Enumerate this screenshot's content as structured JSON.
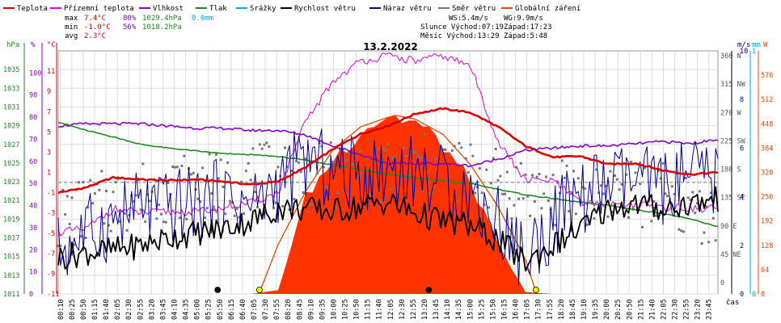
{
  "legend": [
    {
      "label": "Teplota",
      "color": "#dd0000"
    },
    {
      "label": "Přízemní teplota",
      "color": "#dd00dd"
    },
    {
      "label": "Vlhkost",
      "color": "#8800cc"
    },
    {
      "label": "Tlak",
      "color": "#228822"
    },
    {
      "label": "Srážky",
      "color": "#00aacc"
    },
    {
      "label": "Rychlost větru",
      "color": "#000000"
    },
    {
      "label": "Náraz větru",
      "color": "#000099"
    },
    {
      "label": "Směr větru",
      "color": "#777777"
    },
    {
      "label": "Globální záření",
      "color": "#ee4400"
    }
  ],
  "stats": {
    "max_label": "max",
    "min_label": "min",
    "avg_label": "avg",
    "max_temp": "7.4°C",
    "max_hum": "80%",
    "max_press": "1029.4hPa",
    "max_rain": "0.0mm",
    "min_temp": "-1.0°C",
    "min_hum": "56%",
    "min_press": "1018.2hPa",
    "avg_temp": "2.3°C"
  },
  "info": {
    "ws": "WS:5.4m/s",
    "wg": "WG:9.9m/s",
    "sun_rise": "Slunce Východ:07:19",
    "sun_set": "Západ:17:23",
    "moon_rise": "Měsíc Východ:13:29",
    "moon_set": "Západ:5:48"
  },
  "chart_data": {
    "type": "line",
    "title": "13.2.2022",
    "xlabel": "čas",
    "x_ticks": [
      "00:10",
      "00:25",
      "00:50",
      "01:15",
      "01:40",
      "02:05",
      "02:30",
      "02:55",
      "03:20",
      "03:45",
      "04:10",
      "04:35",
      "05:00",
      "05:25",
      "05:50",
      "06:15",
      "06:40",
      "07:05",
      "07:30",
      "07:55",
      "08:20",
      "08:45",
      "09:10",
      "09:35",
      "10:00",
      "10:25",
      "10:50",
      "11:15",
      "11:40",
      "12:05",
      "12:30",
      "12:55",
      "13:20",
      "13:45",
      "14:10",
      "14:35",
      "15:00",
      "15:25",
      "15:50",
      "16:15",
      "16:40",
      "17:05",
      "17:30",
      "17:55",
      "18:20",
      "18:45",
      "19:10",
      "19:35",
      "20:00",
      "20:25",
      "20:50",
      "21:15",
      "21:40",
      "22:05",
      "22:30",
      "22:55",
      "23:20",
      "23:45"
    ],
    "axes": {
      "pressure": {
        "unit": "hPa",
        "range": [
          1011,
          1037
        ],
        "ticks": [
          "1035",
          "1033",
          "1031",
          "1029",
          "1027",
          "1025",
          "1023",
          "1021",
          "1019",
          "1017",
          "1015",
          "1013",
          "1011"
        ]
      },
      "humidity": {
        "unit": "%",
        "range": [
          0,
          110
        ],
        "ticks": [
          "100",
          "90",
          "80",
          "70",
          "60",
          "50",
          "40",
          "30",
          "20",
          "10",
          "0"
        ]
      },
      "temperature": {
        "unit": "°C",
        "range": [
          -11,
          13
        ],
        "ticks": [
          "11",
          "9",
          "7",
          "5",
          "3",
          "1",
          "-1",
          "-3",
          "-5",
          "-7",
          "-9",
          "-11"
        ]
      },
      "direction": {
        "ticks": [
          "360 N",
          "315 NW",
          "270 W",
          "225 SW",
          "180 S",
          "135 SE",
          "90 E",
          "45 NE",
          "0"
        ]
      },
      "wind": {
        "unit": "m/s",
        "range": [
          0,
          10
        ],
        "ticks": [
          "10",
          "8",
          "6",
          "4",
          "2",
          "0"
        ]
      },
      "rain": {
        "unit": "mm",
        "range": [
          0,
          1
        ],
        "ticks": [
          "1",
          "0"
        ]
      },
      "radiation": {
        "unit": "W",
        "range": [
          0,
          640
        ],
        "ticks": [
          "576",
          "512",
          "448",
          "384",
          "320",
          "256",
          "192",
          "128",
          "64",
          "0"
        ]
      }
    },
    "hours": [
      0,
      1,
      2,
      3,
      4,
      5,
      6,
      7,
      8,
      9,
      10,
      11,
      12,
      13,
      14,
      15,
      16,
      17,
      18,
      19,
      20,
      21,
      22,
      23,
      24
    ],
    "series": [
      {
        "name": "Teplota",
        "axis": "temperature",
        "values": [
          -1.0,
          -0.5,
          0.5,
          0.3,
          0.2,
          0.3,
          0.1,
          -0.2,
          0.1,
          1.5,
          3.3,
          4.8,
          5.6,
          6.8,
          7.3,
          6.9,
          5.5,
          3.6,
          2.5,
          2.6,
          1.8,
          1.9,
          1.2,
          0.8,
          1.0
        ]
      },
      {
        "name": "Přízemní teplota",
        "axis": "temperature",
        "values": [
          -4.9,
          -4.6,
          -2.6,
          -3.0,
          -2.9,
          -2.9,
          -2.5,
          -2.0,
          -1.0,
          6.0,
          10.0,
          12.0,
          12.5,
          12.0,
          12.5,
          11.5,
          4.0,
          0.2,
          0.2,
          -2.0,
          -2.1,
          -2.2,
          -2.4,
          -2.6,
          -2.5
        ]
      },
      {
        "name": "Vlhkost",
        "axis": "humidity",
        "values": [
          76,
          77,
          77,
          77,
          76,
          75,
          75,
          74,
          74,
          72,
          67,
          63,
          59,
          59,
          59,
          58,
          61,
          65,
          66,
          67,
          67,
          68,
          69,
          68,
          70
        ]
      },
      {
        "name": "Tlak",
        "axis": "pressure",
        "values": [
          1029.4,
          1028.5,
          1027.8,
          1027.0,
          1026.6,
          1026.3,
          1026.0,
          1025.9,
          1025.7,
          1025.3,
          1024.8,
          1024.3,
          1023.8,
          1023.4,
          1023.1,
          1022.8,
          1022.2,
          1021.6,
          1021.2,
          1020.8,
          1020.5,
          1020.0,
          1019.6,
          1019.0,
          1018.2
        ]
      },
      {
        "name": "Rychlost větru",
        "axis": "wind",
        "values": [
          1.5,
          1.7,
          1.8,
          2.0,
          2.3,
          2.5,
          2.7,
          3.0,
          3.5,
          3.5,
          3.4,
          3.6,
          3.8,
          3.3,
          3.0,
          2.8,
          2.2,
          1.3,
          2.0,
          2.7,
          3.5,
          3.7,
          3.5,
          3.7,
          3.9
        ]
      },
      {
        "name": "Náraz větru",
        "axis": "wind",
        "values": [
          1.8,
          2.5,
          3.0,
          3.6,
          3.5,
          3.8,
          4.0,
          3.6,
          4.5,
          5.5,
          5.0,
          4.9,
          5.2,
          5.0,
          4.6,
          4.1,
          3.1,
          1.4,
          3.0,
          4.0,
          4.5,
          4.6,
          4.4,
          4.8,
          4.6
        ]
      },
      {
        "name": "Směr větru",
        "axis": "direction",
        "values": [
          100,
          115,
          130,
          140,
          150,
          155,
          150,
          165,
          170,
          165,
          170,
          175,
          175,
          180,
          185,
          175,
          160,
          150,
          140,
          145,
          150,
          140,
          135,
          120,
          110
        ]
      },
      {
        "name": "Globální záření",
        "axis": "radiation",
        "values": [
          0,
          0,
          0,
          0,
          0,
          0,
          0,
          0,
          10,
          260,
          360,
          440,
          480,
          460,
          400,
          300,
          130,
          5,
          0,
          0,
          0,
          0,
          0,
          0,
          0
        ]
      }
    ],
    "theoretical_radiation": {
      "axis": "radiation",
      "hours": [
        7.3,
        8,
        9,
        10,
        11,
        12,
        12.3,
        13,
        14,
        15,
        16,
        17,
        17.4
      ],
      "values": [
        0,
        130,
        270,
        380,
        440,
        465,
        470,
        460,
        420,
        340,
        230,
        90,
        0
      ]
    },
    "markers": [
      {
        "label": "moon-set",
        "hour": 5.8,
        "color": "#000000"
      },
      {
        "label": "sun-rise",
        "hour": 7.32,
        "color": "#ffee00"
      },
      {
        "label": "moon-rise",
        "hour": 13.48,
        "color": "#000000"
      },
      {
        "label": "sun-set",
        "hour": 17.38,
        "color": "#ffee00"
      }
    ]
  }
}
